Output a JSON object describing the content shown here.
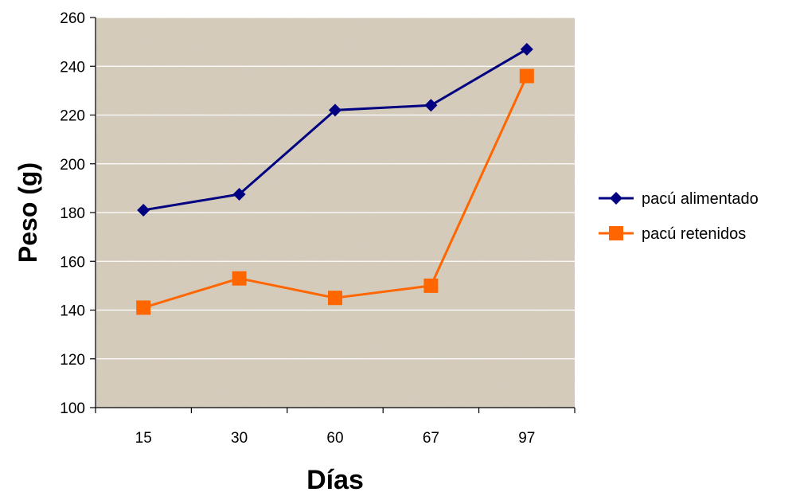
{
  "chart_data": {
    "type": "line",
    "title": "",
    "xlabel": "Días",
    "ylabel": "Peso (g)",
    "categories": [
      "15",
      "30",
      "60",
      "67",
      "97"
    ],
    "ylim": [
      100,
      260
    ],
    "yticks": [
      100,
      120,
      140,
      160,
      180,
      200,
      220,
      240,
      260
    ],
    "grid": true,
    "legend_position": "right",
    "series": [
      {
        "name": "pacú alimentado",
        "values": [
          181,
          187.5,
          222,
          224,
          247
        ],
        "color": "#000080",
        "marker": "diamond"
      },
      {
        "name": "pacú retenidos",
        "values": [
          141,
          153,
          145,
          150,
          236
        ],
        "color": "#FF6600",
        "marker": "square"
      }
    ],
    "plot_background": "#D8CFBF"
  }
}
